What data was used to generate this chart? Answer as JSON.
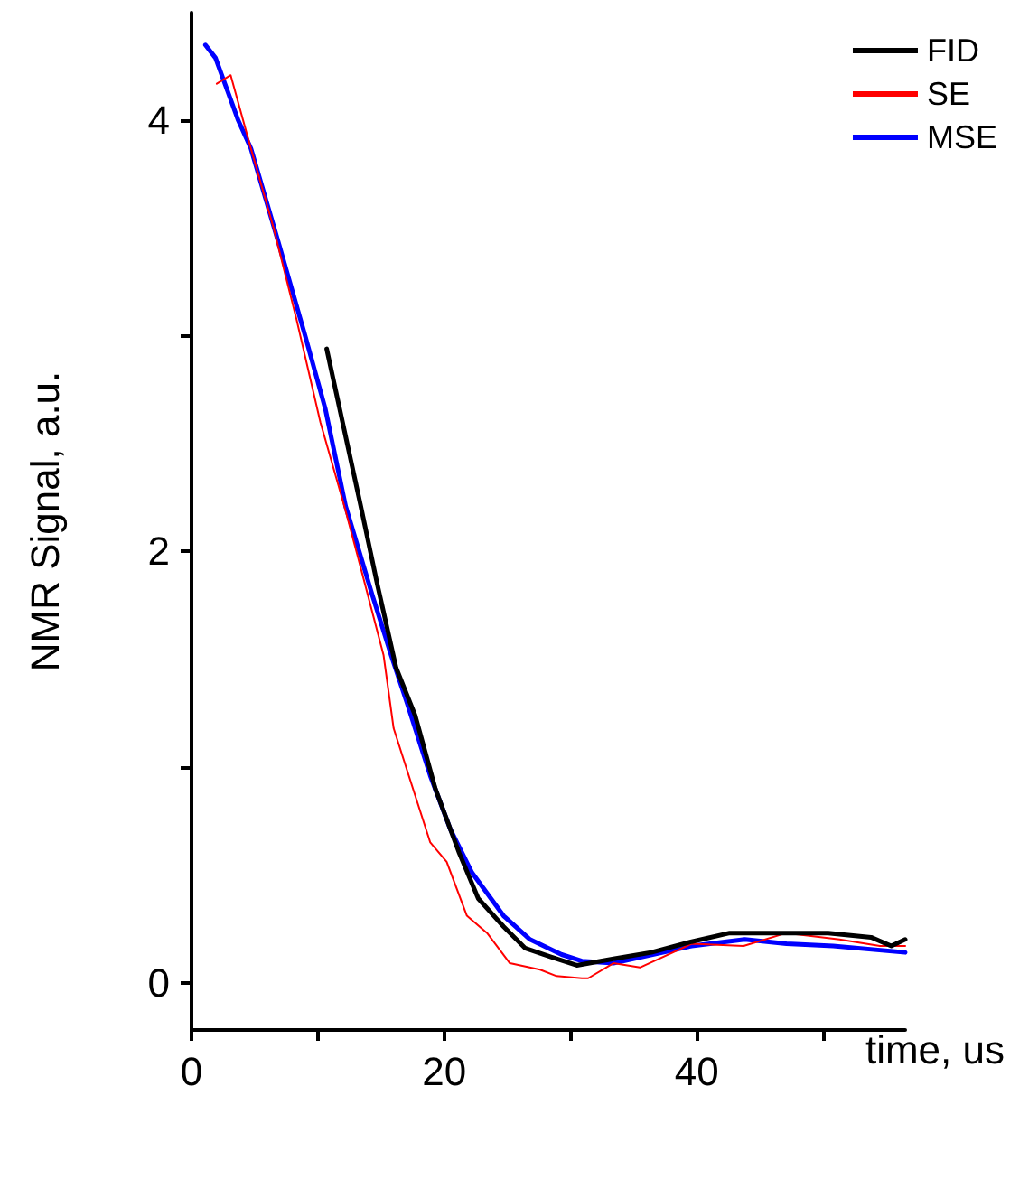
{
  "chart_data": {
    "type": "line",
    "xlabel": "time, us",
    "ylabel": "NMR Signal, a.u.",
    "xlim": [
      0,
      56.5
    ],
    "ylim": [
      -0.22,
      4.5
    ],
    "xticks": [
      0,
      {
        "value": 10,
        "label": null
      },
      20,
      {
        "value": 30,
        "label": null
      },
      40,
      {
        "value": 50,
        "label": null
      }
    ],
    "yticks": [
      0,
      {
        "value": 1,
        "label": null
      },
      2,
      {
        "value": 3,
        "label": null
      },
      4
    ],
    "grid": false,
    "legend": "top right",
    "marker": "none",
    "line_style": "solid",
    "series": [
      {
        "name": "FID",
        "color": "#000000",
        "x": [
          10.7,
          13.4,
          14.7,
          16.2,
          17.7,
          19.3,
          21.2,
          22.7,
          24.7,
          26.4,
          28.4,
          30.5,
          33.4,
          36.4,
          39.6,
          42.6,
          45.5,
          50.4,
          53.8,
          55.4,
          56.5
        ],
        "values": [
          2.94,
          2.21,
          1.85,
          1.46,
          1.24,
          0.9,
          0.6,
          0.39,
          0.26,
          0.16,
          0.12,
          0.08,
          0.11,
          0.14,
          0.19,
          0.23,
          0.23,
          0.23,
          0.21,
          0.17,
          0.2
        ]
      },
      {
        "name": "SE",
        "color": "#ff0000",
        "x": [
          2.0,
          3.1,
          4.7,
          6.5,
          8.3,
          10.2,
          12.1,
          13.1,
          15.2,
          16.0,
          17.2,
          18.9,
          20.2,
          21.8,
          23.4,
          25.2,
          27.6,
          28.9,
          30.9,
          31.4,
          33.4,
          35.5,
          39.6,
          43.7,
          47.1,
          51.3,
          54.5,
          56.5
        ],
        "values": [
          4.17,
          4.21,
          3.87,
          3.5,
          3.08,
          2.6,
          2.21,
          1.99,
          1.52,
          1.18,
          0.96,
          0.65,
          0.56,
          0.31,
          0.23,
          0.09,
          0.06,
          0.03,
          0.02,
          0.02,
          0.09,
          0.07,
          0.18,
          0.17,
          0.23,
          0.2,
          0.17,
          0.17
        ]
      },
      {
        "name": "MSE",
        "color": "#0000ff",
        "x": [
          1.1,
          1.9,
          3.7,
          4.7,
          6.8,
          9.0,
          10.6,
          12.2,
          14.3,
          15.8,
          17.1,
          18.9,
          20.5,
          22.2,
          24.7,
          26.8,
          29.3,
          30.9,
          33.4,
          39.6,
          43.8,
          47.1,
          50.8,
          56.5
        ],
        "values": [
          4.35,
          4.29,
          4.0,
          3.87,
          3.45,
          3.0,
          2.66,
          2.21,
          1.8,
          1.52,
          1.29,
          0.96,
          0.71,
          0.51,
          0.31,
          0.2,
          0.13,
          0.1,
          0.09,
          0.17,
          0.2,
          0.18,
          0.17,
          0.14
        ]
      }
    ]
  }
}
